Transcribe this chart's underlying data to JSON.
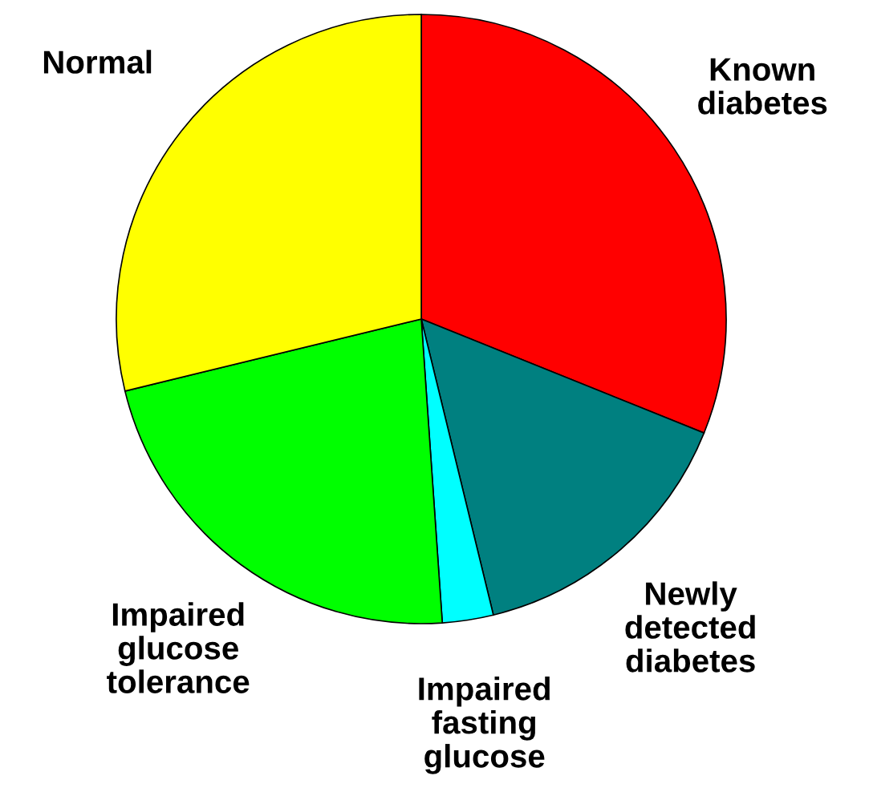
{
  "chart_data": {
    "type": "pie",
    "categories": [
      "Known\ndiabetes",
      "Newly\ndetected\ndiabetes",
      "Impaired\nfasting\nglucose",
      "Impaired\nglucose\ntolerance",
      "Normal"
    ],
    "values": [
      31.1,
      15.1,
      2.7,
      22.3,
      28.8
    ],
    "colors": [
      "#ff0000",
      "#008080",
      "#00ffff",
      "#00ff00",
      "#ffff00"
    ]
  }
}
